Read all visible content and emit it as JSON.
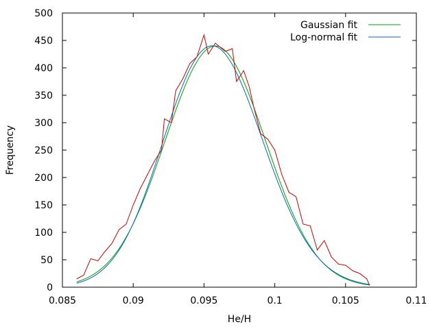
{
  "chart_data": {
    "type": "line",
    "title": "",
    "xlabel": "He/H",
    "ylabel": "Frequency",
    "xlim": [
      0.085,
      0.11
    ],
    "ylim": [
      0,
      500
    ],
    "xticks": [
      0.085,
      0.09,
      0.095,
      0.1,
      0.105,
      0.11
    ],
    "xtick_labels": [
      "0.085",
      "0.09",
      "0.095",
      "0.1",
      "0.105",
      "0.11"
    ],
    "yticks": [
      0,
      50,
      100,
      150,
      200,
      250,
      300,
      350,
      400,
      450,
      500
    ],
    "ytick_labels": [
      "0",
      "50",
      "100",
      "150",
      "200",
      "250",
      "300",
      "350",
      "400",
      "450",
      "500"
    ],
    "grid": false,
    "legend_position": "top-right",
    "series": [
      {
        "name": "",
        "color": "#cc0000",
        "x": [
          0.086,
          0.0865,
          0.087,
          0.0875,
          0.088,
          0.0885,
          0.089,
          0.0895,
          0.09,
          0.0905,
          0.091,
          0.0915,
          0.092,
          0.0922,
          0.0927,
          0.093,
          0.0935,
          0.094,
          0.0945,
          0.095,
          0.0953,
          0.0958,
          0.0965,
          0.097,
          0.0973,
          0.0978,
          0.0982,
          0.0985,
          0.099,
          0.0995,
          0.1,
          0.1005,
          0.101,
          0.1015,
          0.102,
          0.1025,
          0.103,
          0.1035,
          0.104,
          0.1045,
          0.105,
          0.1055,
          0.106,
          0.1065,
          0.1067
        ],
        "values": [
          15,
          22,
          52,
          48,
          65,
          80,
          105,
          115,
          150,
          180,
          205,
          230,
          250,
          307,
          300,
          358,
          380,
          408,
          420,
          460,
          425,
          445,
          430,
          435,
          375,
          395,
          365,
          330,
          280,
          270,
          250,
          205,
          173,
          165,
          115,
          112,
          68,
          85,
          55,
          42,
          40,
          30,
          25,
          15,
          3
        ]
      }
    ],
    "fits": [
      {
        "name": "Gaussian fit",
        "color": "#00a000",
        "mu": 0.0958,
        "sigma": 0.00355,
        "amplitude": 440,
        "x_range": [
          0.086,
          0.1067
        ]
      },
      {
        "name": "Log-normal fit",
        "color": "#0066cc",
        "median": 0.0957,
        "sigma_log": 0.0368,
        "amplitude": 440,
        "x_range": [
          0.086,
          0.1067
        ]
      }
    ]
  }
}
